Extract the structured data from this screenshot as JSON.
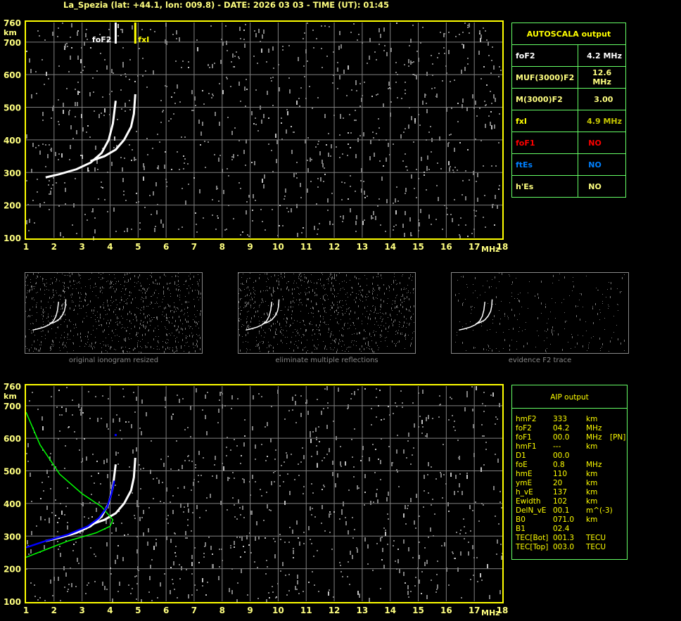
{
  "title": "La_Spezia (lat: +44.1, lon: 009.8) - DATE: 2026 03 03 - TIME (UT): 01:45",
  "colors": {
    "axis": "#ffff00",
    "grid": "#808080",
    "trace": "#ffffff",
    "profile": "#00ff00",
    "fit": "#0000ff",
    "table_border": "#66ff66",
    "foF1": "#ff0000",
    "ftEs": "#0080ff",
    "fxI": "#c8c800"
  },
  "chart_data": {
    "type": "scatter",
    "xlabel": "MHz",
    "ylabel": "km",
    "xlim": [
      1,
      18
    ],
    "ylim": [
      100,
      760
    ],
    "x_ticks": [
      "1",
      "2",
      "3",
      "4",
      "5",
      "6",
      "7",
      "8",
      "9",
      "10",
      "11",
      "12",
      "13",
      "14",
      "15",
      "16",
      "17",
      "18"
    ],
    "y_ticks": [
      "760",
      "700",
      "600",
      "500",
      "400",
      "300",
      "200",
      "100"
    ],
    "grid": true,
    "markers": [
      {
        "label": "foF2",
        "x": 4.2
      },
      {
        "label": "fxI",
        "x": 4.9
      }
    ],
    "o_trace": [
      [
        1.7,
        285
      ],
      [
        2.2,
        295
      ],
      [
        2.8,
        310
      ],
      [
        3.3,
        330
      ],
      [
        3.7,
        360
      ],
      [
        3.95,
        400
      ],
      [
        4.1,
        450
      ],
      [
        4.2,
        520
      ]
    ],
    "x_trace": [
      [
        3.3,
        335
      ],
      [
        3.8,
        350
      ],
      [
        4.2,
        370
      ],
      [
        4.5,
        400
      ],
      [
        4.75,
        440
      ],
      [
        4.85,
        480
      ],
      [
        4.9,
        540
      ]
    ],
    "profile": [
      [
        1,
        680
      ],
      [
        1.5,
        580
      ],
      [
        2.2,
        490
      ],
      [
        3,
        430
      ],
      [
        3.7,
        390
      ],
      [
        4.1,
        350
      ],
      [
        4.0,
        330
      ],
      [
        3.5,
        310
      ],
      [
        2.5,
        285
      ],
      [
        1.6,
        255
      ],
      [
        1,
        235
      ]
    ],
    "fit": [
      [
        1,
        265
      ],
      [
        1.7,
        285
      ],
      [
        2.5,
        305
      ],
      [
        3.2,
        330
      ],
      [
        3.6,
        355
      ],
      [
        3.9,
        390
      ],
      [
        4.05,
        430
      ],
      [
        4.15,
        470
      ]
    ],
    "fit_points": [
      [
        4.2,
        610
      ]
    ]
  },
  "autoscala": {
    "header": "AUTOSCALA output",
    "rows": [
      {
        "label": "foF2",
        "value": "4.2 MHz"
      },
      {
        "label": "MUF(3000)F2",
        "value": "12.6 MHz"
      },
      {
        "label": "M(3000)F2",
        "value": "3.00"
      },
      {
        "label": "fxI",
        "value": "4.9 MHz"
      },
      {
        "label": "foF1",
        "value": "NO"
      },
      {
        "label": "ftEs",
        "value": "NO"
      },
      {
        "label": "h'Es",
        "value": "NO"
      }
    ]
  },
  "thumbnails": [
    {
      "label": "original ionogram resized"
    },
    {
      "label": "eliminate multiple reflections"
    },
    {
      "label": "evidence F2 trace"
    }
  ],
  "aip": {
    "header": "AIP output",
    "rows": [
      [
        "hmF2",
        "333",
        "km",
        ""
      ],
      [
        "foF2",
        "04.2",
        "MHz",
        ""
      ],
      [
        "foF1",
        "00.0",
        "MHz",
        "[PN]"
      ],
      [
        "hmF1",
        "---",
        "km",
        ""
      ],
      [
        "D1",
        "00.0",
        "",
        ""
      ],
      [
        "foE",
        "0.8",
        "MHz",
        ""
      ],
      [
        "hmE",
        "110",
        "km",
        ""
      ],
      [
        "ymE",
        "20",
        "km",
        ""
      ],
      [
        "h_vE",
        "137",
        "km",
        ""
      ],
      [
        "Ewidth",
        "102",
        "km",
        ""
      ],
      [
        "DelN_vE",
        "00.1",
        "m^(-3)",
        ""
      ],
      [
        "B0",
        "071.0",
        "km",
        ""
      ],
      [
        "B1",
        "02.4",
        "",
        ""
      ],
      [
        "TEC[Bot]",
        "001.3",
        "TECU",
        ""
      ],
      [
        "TEC[Top]",
        "003.0",
        "TECU",
        ""
      ]
    ]
  }
}
